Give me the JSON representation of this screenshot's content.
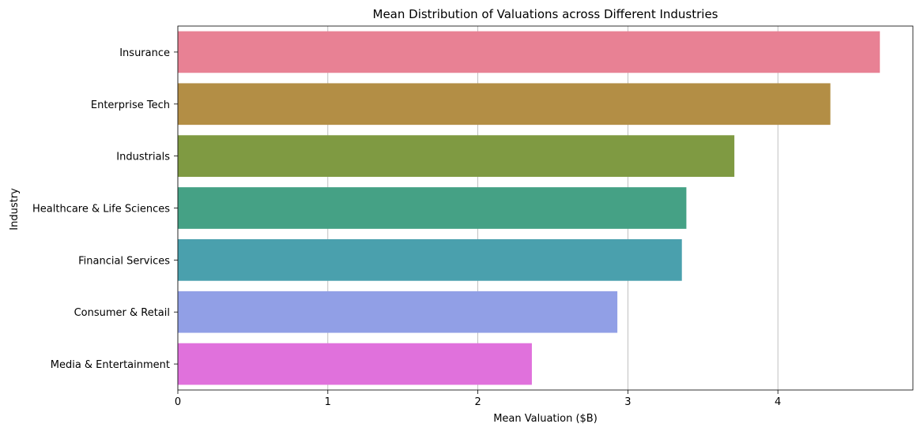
{
  "chart_data": {
    "type": "bar",
    "orientation": "horizontal",
    "title": "Mean Distribution of Valuations across Different Industries",
    "xlabel": "Mean Valuation ($B)",
    "ylabel": "Industry",
    "xlim": [
      0,
      4.9
    ],
    "xticks": [
      0,
      1,
      2,
      3,
      4
    ],
    "grid": "x-axis vertical lines",
    "categories": [
      "Insurance",
      "Enterprise Tech",
      "Industrials",
      "Healthcare & Life Sciences",
      "Financial Services",
      "Consumer & Retail",
      "Media & Entertainment"
    ],
    "values": [
      4.68,
      4.35,
      3.71,
      3.39,
      3.36,
      2.93,
      2.36
    ],
    "colors": [
      "#e88194",
      "#b38e45",
      "#7f9a42",
      "#45a185",
      "#4aa0ad",
      "#919fe6",
      "#e071dc"
    ]
  }
}
